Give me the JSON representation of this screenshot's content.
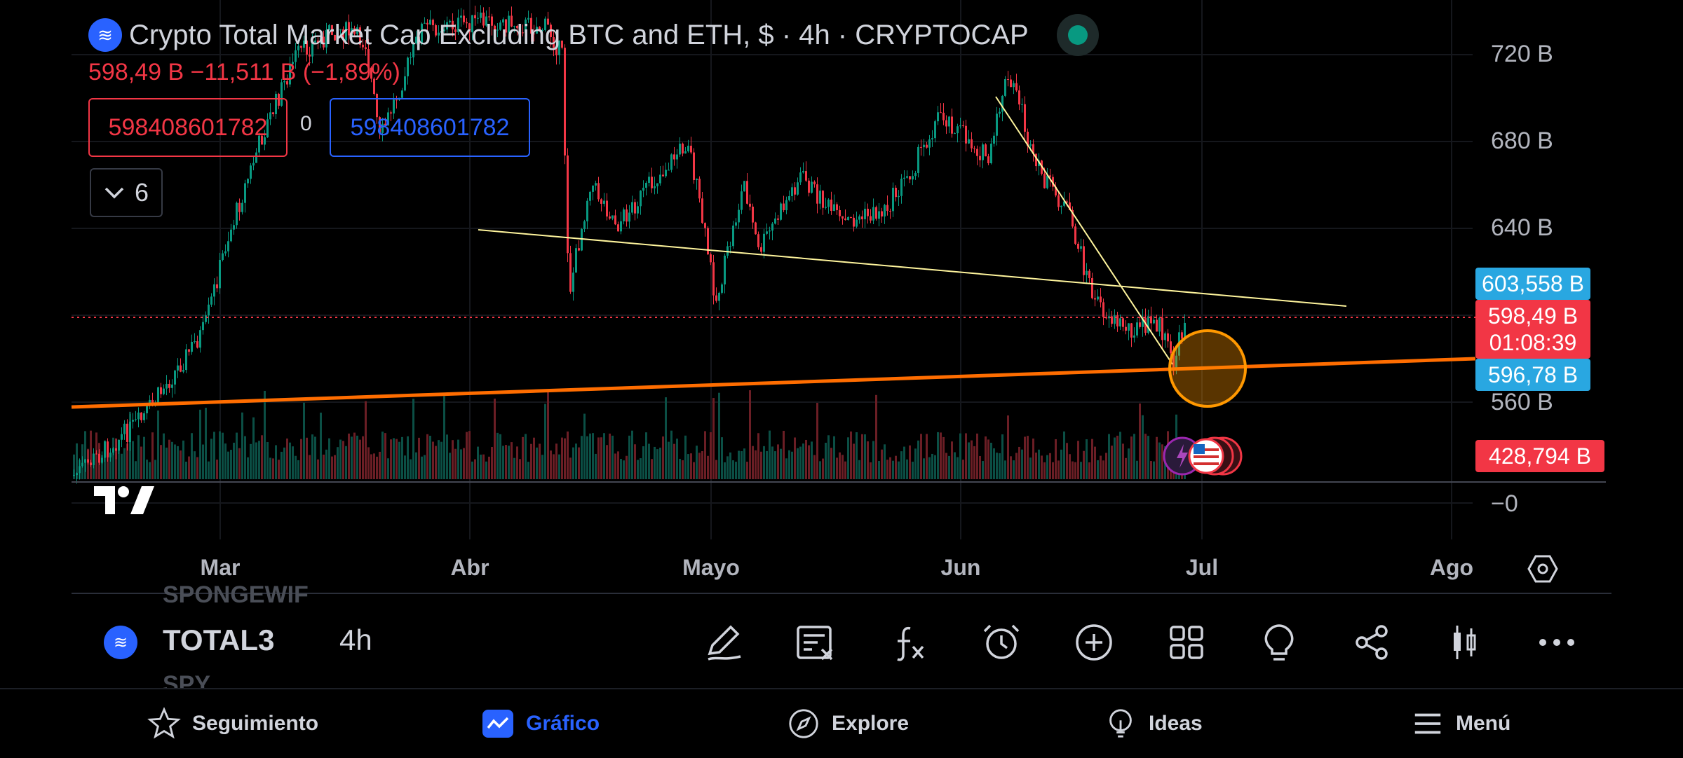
{
  "header": {
    "title": "Crypto Total Market Cap Excluding BTC and ETH, $ · 4h · CRYPTOCAP",
    "price_change": "598,49 B  −11,511 B (−1,89%)",
    "value_red": "598408601782",
    "value_zero": "0",
    "value_blue": "598408601782",
    "indicators_count": "6"
  },
  "price_axis": {
    "labels": [
      "720 B",
      "680 B",
      "640 B",
      "560 B",
      "−0"
    ],
    "tags": {
      "upper_blue": "603,558 B",
      "last_price": "598,49 B",
      "countdown": "01:08:39",
      "lower_blue": "596,78 B",
      "volume": "428,794 B"
    }
  },
  "time_axis": {
    "labels": [
      "Mar",
      "Abr",
      "Mayo",
      "Jun",
      "Jul",
      "Ago"
    ]
  },
  "toolbar": {
    "ghost_above": "SPONGEWIF",
    "symbol": "TOTAL3",
    "interval": "4h",
    "ghost_below": "SPY",
    "tools": [
      "draw-icon",
      "trade-note-icon",
      "indicators-icon",
      "alert-icon",
      "add-icon",
      "layout-icon",
      "ideas-bulb-icon",
      "share-icon",
      "candle-type-icon",
      "more-icon"
    ]
  },
  "bottom_nav": {
    "items": [
      {
        "label": "Seguimiento",
        "icon": "star-icon"
      },
      {
        "label": "Gráfico",
        "icon": "chart-icon"
      },
      {
        "label": "Explore",
        "icon": "compass-icon"
      },
      {
        "label": "Ideas",
        "icon": "bulb-icon"
      },
      {
        "label": "Menú",
        "icon": "menu-icon"
      }
    ]
  },
  "colors": {
    "up": "#089981",
    "down": "#f23645",
    "accent": "#2962ff",
    "trend_orange": "#ff6d00",
    "trend_yellow": "#fff59d",
    "tag_blue": "#29a7e1"
  }
}
